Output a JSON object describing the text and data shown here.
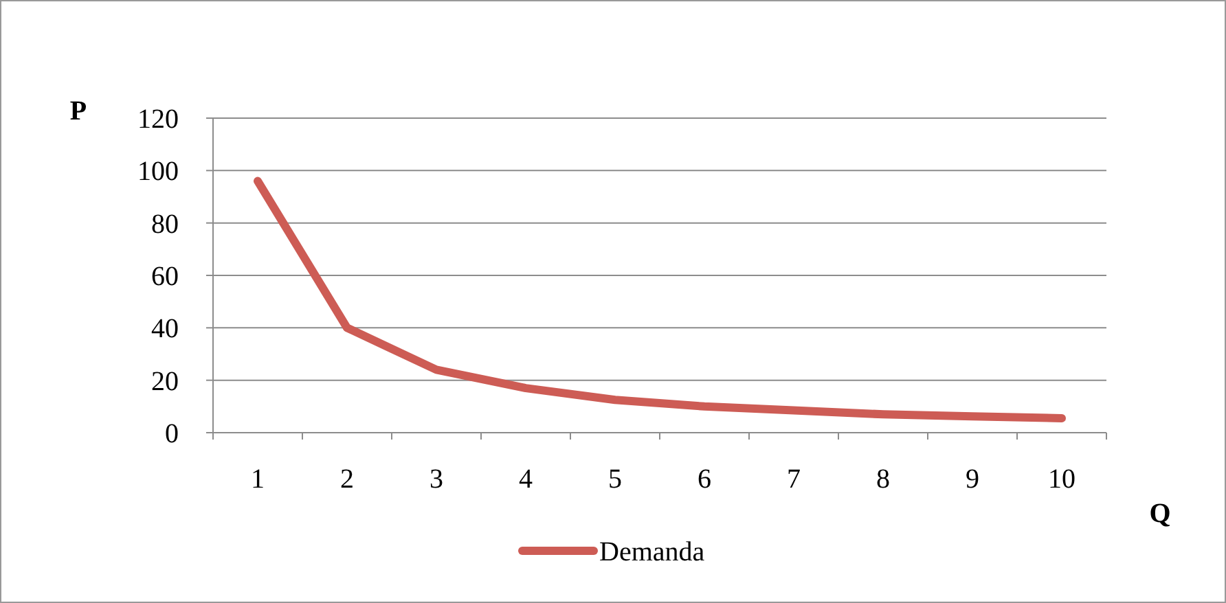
{
  "chart_data": {
    "type": "line",
    "xlabel": "Q",
    "ylabel": "P",
    "categories": [
      "1",
      "2",
      "3",
      "4",
      "5",
      "6",
      "7",
      "8",
      "9",
      "10"
    ],
    "series": [
      {
        "name": "Demanda",
        "color": "#cd5c55",
        "values": [
          96,
          40,
          24,
          17,
          12.5,
          10,
          8.5,
          7,
          6.2,
          5.5
        ]
      }
    ],
    "ylim": [
      0,
      120
    ],
    "yticks": [
      0,
      20,
      40,
      60,
      80,
      100,
      120
    ],
    "grid": "y",
    "legend": "bottom",
    "marker": "none",
    "line_style": "solid"
  }
}
